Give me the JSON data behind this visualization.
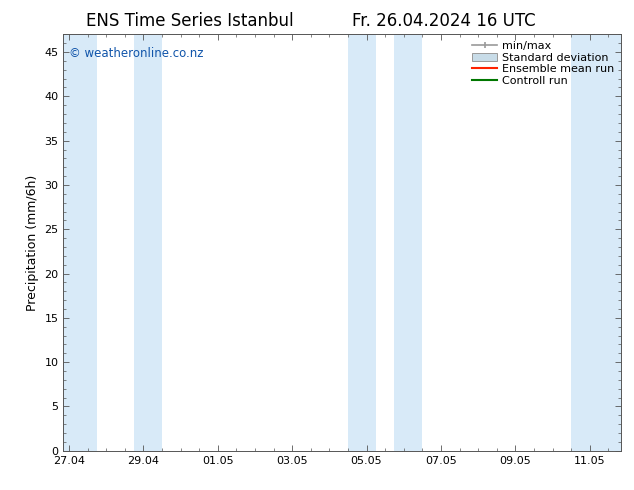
{
  "title": "ENS Time Series Istanbul",
  "title_right": "Fr. 26.04.2024 16 UTC",
  "ylabel": "Precipitation (mm/6h)",
  "ylim": [
    0,
    47
  ],
  "yticks": [
    0,
    5,
    10,
    15,
    20,
    25,
    30,
    35,
    40,
    45
  ],
  "xtick_positions": [
    0,
    2,
    4,
    6,
    8,
    10,
    12,
    14
  ],
  "xtick_labels": [
    "27.04",
    "29.04",
    "01.05",
    "03.05",
    "05.05",
    "07.05",
    "09.05",
    "11.05"
  ],
  "xlim": [
    -0.15,
    14.85
  ],
  "shaded_day_ranges": [
    [
      -0.15,
      0.75
    ],
    [
      1.75,
      2.5
    ],
    [
      7.5,
      8.25
    ],
    [
      8.75,
      9.5
    ],
    [
      13.5,
      14.85
    ]
  ],
  "shade_color": "#d8eaf8",
  "bg_color": "#ffffff",
  "watermark": "© weatheronline.co.nz",
  "watermark_color": "#1155aa",
  "legend_labels": [
    "min/max",
    "Standard deviation",
    "Ensemble mean run",
    "Controll run"
  ],
  "minmax_color": "#999999",
  "std_facecolor": "#c8dce8",
  "std_edgecolor": "#999999",
  "ens_color": "#ff2200",
  "ctrl_color": "#007700",
  "title_fontsize": 12,
  "label_fontsize": 9,
  "tick_fontsize": 8,
  "legend_fontsize": 8
}
